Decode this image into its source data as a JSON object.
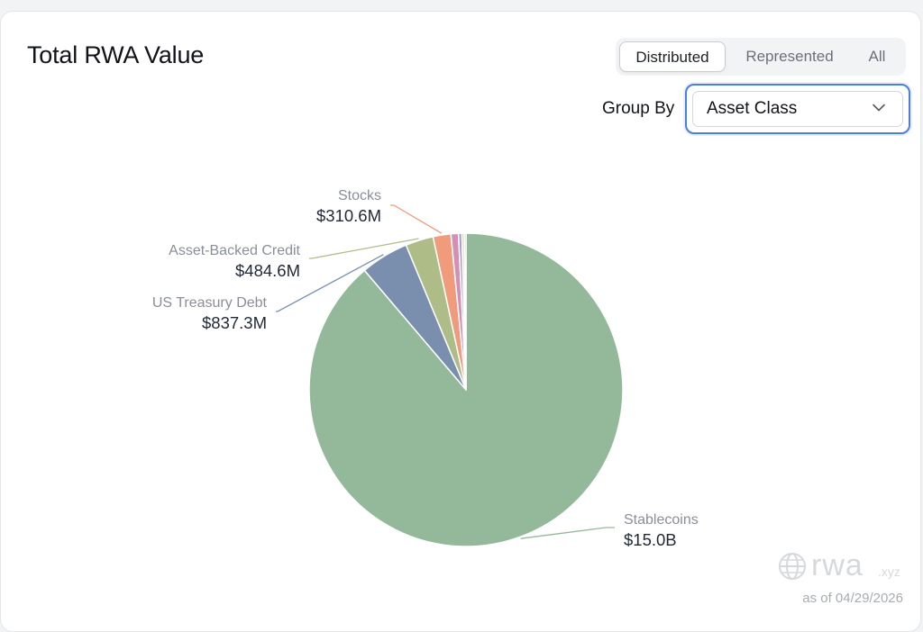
{
  "title": "Total RWA Value",
  "tabs": [
    {
      "label": "Distributed",
      "active": true
    },
    {
      "label": "Represented",
      "active": false
    },
    {
      "label": "All",
      "active": false
    }
  ],
  "group_by": {
    "label": "Group By",
    "selected": "Asset Class"
  },
  "watermark": {
    "brand": "rwa",
    "suffix": ".xyz"
  },
  "as_of": "as of 04/29/2026",
  "chart_data": {
    "type": "pie",
    "slices": [
      {
        "label": "Stablecoins",
        "value_label": "$15.0B",
        "value": 15000,
        "color": "#93b99a"
      },
      {
        "label": "US Treasury Debt",
        "value_label": "$837.3M",
        "value": 837.3,
        "color": "#7a8eae"
      },
      {
        "label": "Asset-Backed Credit",
        "value_label": "$484.6M",
        "value": 484.6,
        "color": "#aebd88"
      },
      {
        "label": "Stocks",
        "value_label": "$310.6M",
        "value": 310.6,
        "color": "#f09b7c"
      },
      {
        "label": "",
        "value_label": "",
        "value": 130,
        "color": "#d58fb4"
      },
      {
        "label": "",
        "value_label": "",
        "value": 60,
        "color": "#a6a1cf"
      },
      {
        "label": "",
        "value_label": "",
        "value": 40,
        "color": "#e6c98a"
      },
      {
        "label": "",
        "value_label": "",
        "value": 30,
        "color": "#9ec1d8"
      }
    ]
  }
}
